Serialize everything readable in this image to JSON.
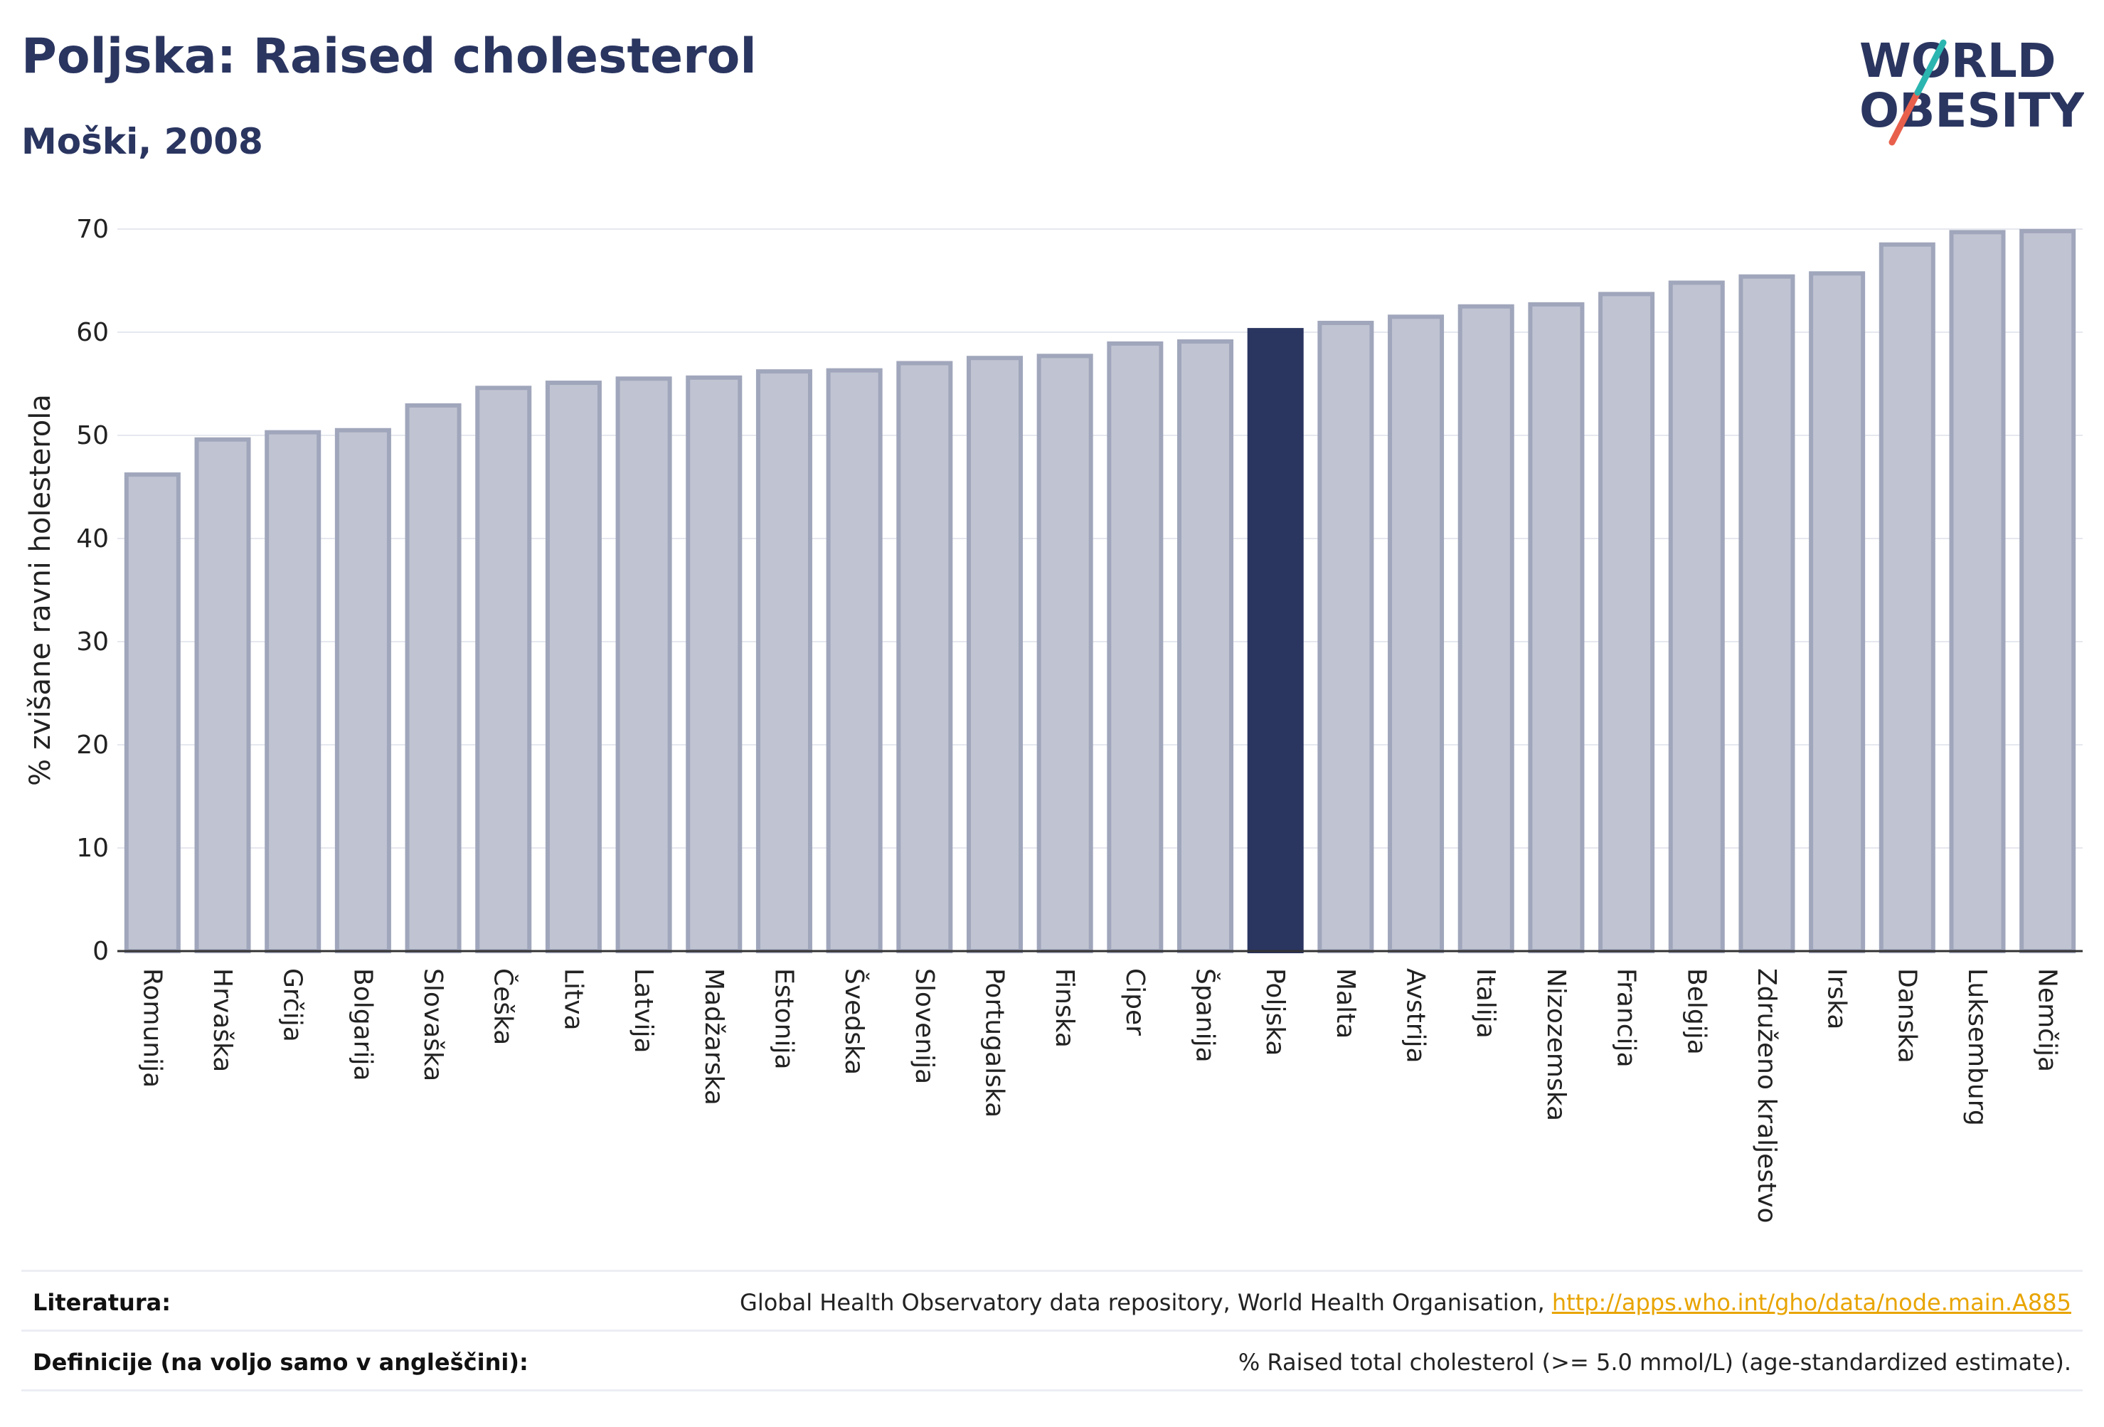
{
  "header": {
    "title": "Poljska: Raised cholesterol",
    "subtitle": "Moški, 2008"
  },
  "logo": {
    "line1": "WORLD",
    "line2": "OBESITY",
    "colors": {
      "text": "#2a3560",
      "teal": "#2bb5b0",
      "red": "#e8604c"
    }
  },
  "chart_data": {
    "type": "bar",
    "ylabel": "% zvišane ravni holesterola",
    "ylim": [
      0,
      70
    ],
    "yticks": [
      0,
      10,
      20,
      30,
      40,
      50,
      60,
      70
    ],
    "grid": true,
    "highlight": "Poljska",
    "colors": {
      "bar": "#c0c4d2",
      "bar_stroke": "#a0a6bb",
      "highlight": "#2a3560"
    },
    "categories": [
      "Romunija",
      "Hrvaška",
      "Grčija",
      "Bolgarija",
      "Slovaška",
      "Češka",
      "Litva",
      "Latvija",
      "Madžarska",
      "Estonija",
      "Švedska",
      "Slovenija",
      "Portugalska",
      "Finska",
      "Ciper",
      "Španija",
      "Poljska",
      "Malta",
      "Avstrija",
      "Italija",
      "Nizozemska",
      "Francija",
      "Belgija",
      "Združeno kraljestvo",
      "Irska",
      "Danska",
      "Luksemburg",
      "Nemčija"
    ],
    "values": [
      46.2,
      49.6,
      50.3,
      50.5,
      52.9,
      54.6,
      55.1,
      55.5,
      55.6,
      56.2,
      56.3,
      57.0,
      57.5,
      57.7,
      58.9,
      59.1,
      60.2,
      60.9,
      61.5,
      62.5,
      62.7,
      63.7,
      64.8,
      65.4,
      65.7,
      68.5,
      69.7,
      69.8
    ]
  },
  "footer": {
    "references_label": "Literatura:",
    "references_text": "Global Health Observatory data repository, World Health Organisation, ",
    "references_link": "http://apps.who.int/gho/data/node.main.A885",
    "definitions_label": "Definicije (na voljo samo v angleščini):",
    "definitions_text": "% Raised total cholesterol (>= 5.0 mmol/L) (age-standardized estimate)."
  }
}
